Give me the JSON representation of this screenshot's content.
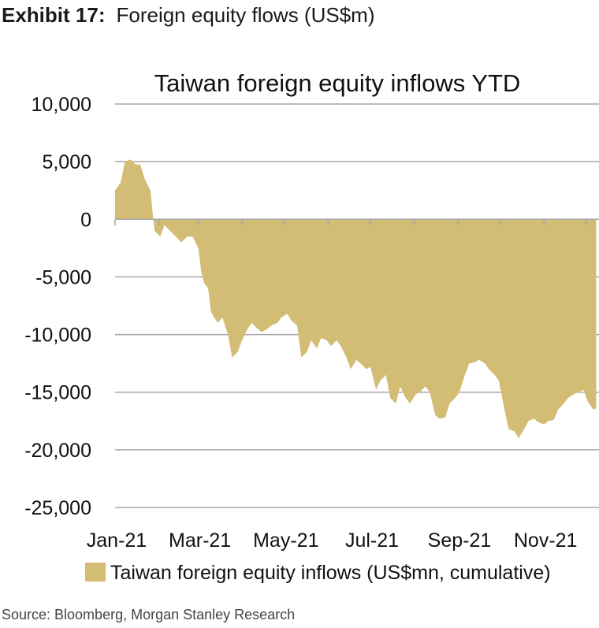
{
  "exhibit": {
    "number": "Exhibit 17:",
    "title": "Foreign equity flows (US$m)"
  },
  "source": "Source: Bloomberg, Morgan Stanley Research",
  "colors": {
    "fill": "#d3bc73",
    "grid": "#a6a6a6",
    "text": "#111111"
  },
  "chart_data": {
    "type": "area",
    "title": "Taiwan foreign equity inflows YTD",
    "xlabel": "",
    "ylabel": "",
    "ylim": [
      -25000,
      10000
    ],
    "yticks": [
      10000,
      5000,
      0,
      -5000,
      -10000,
      -15000,
      -20000,
      -25000
    ],
    "ytick_labels": [
      "10,000",
      "5,000",
      "0",
      "-5,000",
      "-10,000",
      "-15,000",
      "-20,000",
      "-25,000"
    ],
    "xticks": [
      "Jan-21",
      "Mar-21",
      "May-21",
      "Jul-21",
      "Sep-21",
      "Nov-21"
    ],
    "grid": "horizontal",
    "legend_position": "bottom",
    "series": [
      {
        "name": "Taiwan foreign equity inflows (US$mn, cumulative)",
        "x": [
          "2021-01-01",
          "2021-01-05",
          "2021-01-08",
          "2021-01-12",
          "2021-01-15",
          "2021-01-19",
          "2021-01-22",
          "2021-01-26",
          "2021-01-29",
          "2021-02-02",
          "2021-02-05",
          "2021-02-09",
          "2021-02-17",
          "2021-02-21",
          "2021-02-25",
          "2021-03-01",
          "2021-03-03",
          "2021-03-05",
          "2021-03-08",
          "2021-03-10",
          "2021-03-12",
          "2021-03-15",
          "2021-03-18",
          "2021-03-22",
          "2021-03-25",
          "2021-03-29",
          "2021-04-01",
          "2021-04-05",
          "2021-04-08",
          "2021-04-12",
          "2021-04-15",
          "2021-04-19",
          "2021-04-22",
          "2021-04-26",
          "2021-04-29",
          "2021-05-03",
          "2021-05-06",
          "2021-05-10",
          "2021-05-13",
          "2021-05-17",
          "2021-05-20",
          "2021-05-24",
          "2021-05-27",
          "2021-05-31",
          "2021-06-03",
          "2021-06-07",
          "2021-06-10",
          "2021-06-14",
          "2021-06-17",
          "2021-06-21",
          "2021-06-24",
          "2021-06-28",
          "2021-07-01",
          "2021-07-05",
          "2021-07-08",
          "2021-07-12",
          "2021-07-15",
          "2021-07-19",
          "2021-07-22",
          "2021-07-26",
          "2021-07-29",
          "2021-08-02",
          "2021-08-05",
          "2021-08-09",
          "2021-08-12",
          "2021-08-16",
          "2021-08-19",
          "2021-08-23",
          "2021-08-26",
          "2021-08-30",
          "2021-09-02",
          "2021-09-06",
          "2021-09-09",
          "2021-09-13",
          "2021-09-16",
          "2021-09-20",
          "2021-09-23",
          "2021-09-27",
          "2021-09-30",
          "2021-10-04",
          "2021-10-07",
          "2021-10-11",
          "2021-10-14",
          "2021-10-18",
          "2021-10-21",
          "2021-10-25",
          "2021-10-28",
          "2021-11-01",
          "2021-11-04",
          "2021-11-08",
          "2021-11-11",
          "2021-11-15",
          "2021-11-18",
          "2021-11-22",
          "2021-11-25",
          "2021-11-29",
          "2021-12-02",
          "2021-12-06",
          "2021-12-08"
        ],
        "values": [
          2500,
          3200,
          5000,
          5200,
          4800,
          4700,
          3500,
          2500,
          -1000,
          -1500,
          -500,
          -1000,
          -2000,
          -1500,
          -1500,
          -2500,
          -4500,
          -5500,
          -6000,
          -8000,
          -8500,
          -9000,
          -8500,
          -10000,
          -12000,
          -11500,
          -10500,
          -9500,
          -9000,
          -9500,
          -9800,
          -9500,
          -9200,
          -9000,
          -8500,
          -8200,
          -8800,
          -9200,
          -12000,
          -11500,
          -10500,
          -11200,
          -10300,
          -10500,
          -11000,
          -10500,
          -11000,
          -12000,
          -13000,
          -12200,
          -12500,
          -13000,
          -12800,
          -14800,
          -14000,
          -13500,
          -15500,
          -16000,
          -14500,
          -15500,
          -16000,
          -15200,
          -15000,
          -14500,
          -15000,
          -17000,
          -17300,
          -17200,
          -16000,
          -15500,
          -15000,
          -13500,
          -12500,
          -12400,
          -12200,
          -12500,
          -13000,
          -13500,
          -14000,
          -16500,
          -18200,
          -18400,
          -19000,
          -18200,
          -17500,
          -17300,
          -17600,
          -17800,
          -17500,
          -17400,
          -16500,
          -16000,
          -15500,
          -15200,
          -15000,
          -14800,
          -15800,
          -16500,
          -16400
        ]
      }
    ]
  }
}
